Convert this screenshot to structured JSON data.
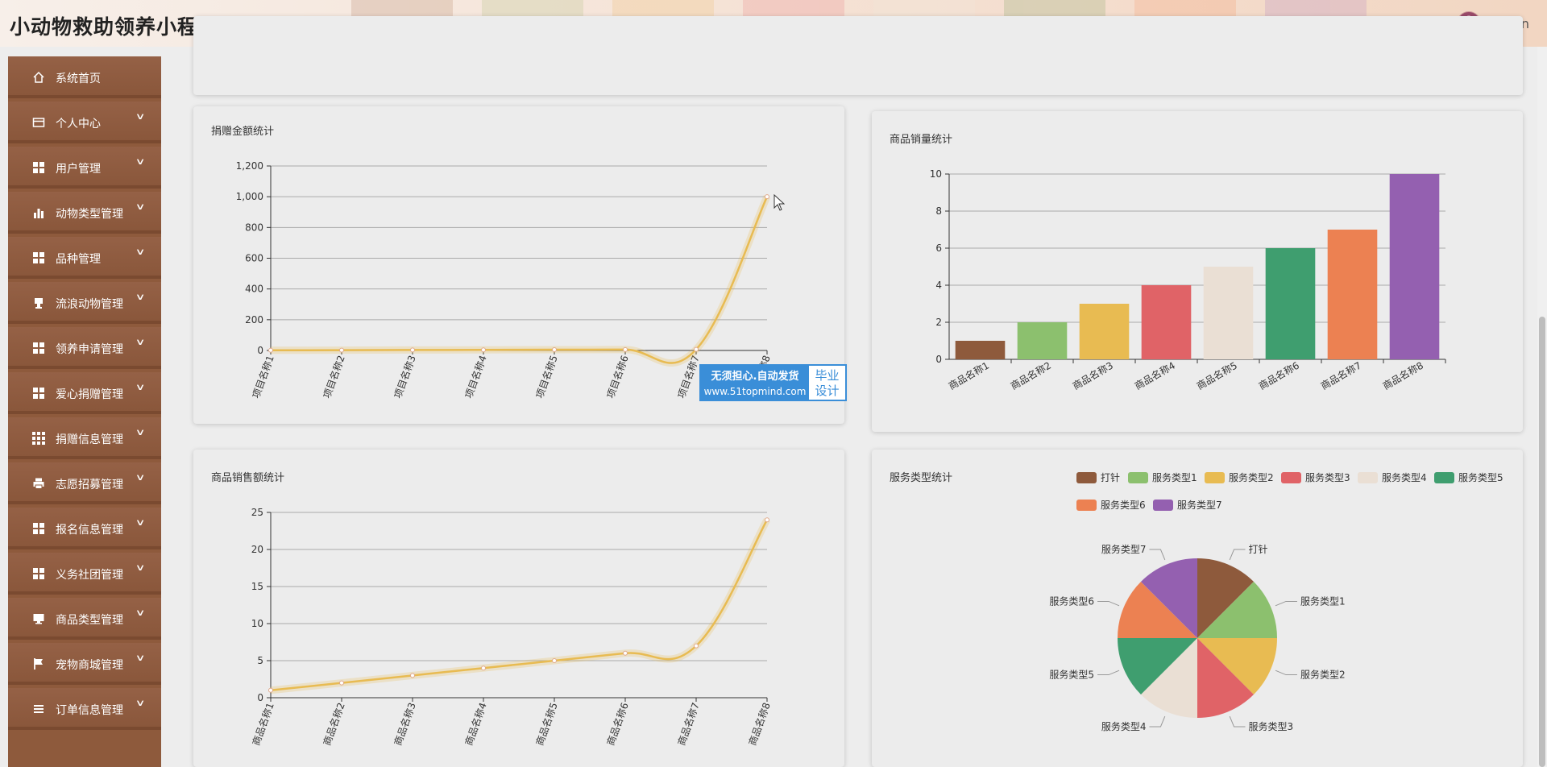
{
  "app": {
    "title": "小动物救助领养小程序",
    "username": "admin"
  },
  "sidebar": {
    "items": [
      {
        "label": "系统首页",
        "icon": "home-icon",
        "has_children": false
      },
      {
        "label": "个人中心",
        "icon": "wallet-icon",
        "has_children": true
      },
      {
        "label": "用户管理",
        "icon": "grid-icon",
        "has_children": true
      },
      {
        "label": "动物类型管理",
        "icon": "bar-chart-icon",
        "has_children": true
      },
      {
        "label": "品种管理",
        "icon": "grid-icon",
        "has_children": true
      },
      {
        "label": "流浪动物管理",
        "icon": "stamp-icon",
        "has_children": true
      },
      {
        "label": "领养申请管理",
        "icon": "grid-icon",
        "has_children": true
      },
      {
        "label": "爱心捐赠管理",
        "icon": "grid-icon",
        "has_children": true
      },
      {
        "label": "捐赠信息管理",
        "icon": "grid9-icon",
        "has_children": true
      },
      {
        "label": "志愿招募管理",
        "icon": "printer-icon",
        "has_children": true
      },
      {
        "label": "报名信息管理",
        "icon": "grid-icon",
        "has_children": true
      },
      {
        "label": "义务社团管理",
        "icon": "grid-icon",
        "has_children": true
      },
      {
        "label": "商品类型管理",
        "icon": "monitor-icon",
        "has_children": true
      },
      {
        "label": "宠物商城管理",
        "icon": "flag-icon",
        "has_children": true
      },
      {
        "label": "订单信息管理",
        "icon": "list-icon",
        "has_children": true
      }
    ]
  },
  "colors": {
    "palette": [
      "#8e5a3c",
      "#8cc06e",
      "#e8bb52",
      "#e06367",
      "#eadfd4",
      "#3f9e6f",
      "#ec8152",
      "#9460b0"
    ],
    "line": "#e8bb52",
    "sidebar": "#8e5a3c"
  },
  "watermark": {
    "line1": "无须担心.自动发货",
    "line2": "www.51topmind.com",
    "side1": "毕业",
    "side2": "设计"
  },
  "chart_data": [
    {
      "type": "line",
      "title": "捐赠金额统计",
      "categories": [
        "项目名称1",
        "项目名称2",
        "项目名称3",
        "项目名称4",
        "项目名称5",
        "项目名称6",
        "项目名称7",
        "项目名称8"
      ],
      "values": [
        1,
        2,
        3,
        4,
        5,
        6,
        7,
        1000
      ],
      "ylim": [
        0,
        1200
      ],
      "yticks": [
        "0",
        "200",
        "400",
        "600",
        "800",
        "1,000",
        "1,200"
      ],
      "grid": true
    },
    {
      "type": "bar",
      "title": "商品销量统计",
      "categories": [
        "商品名称1",
        "商品名称2",
        "商品名称3",
        "商品名称4",
        "商品名称5",
        "商品名称6",
        "商品名称7",
        "商品名称8"
      ],
      "values": [
        1,
        2,
        3,
        4,
        5,
        6,
        7,
        10
      ],
      "ylim": [
        0,
        10
      ],
      "yticks": [
        "0",
        "2",
        "4",
        "6",
        "8",
        "10"
      ],
      "grid": true
    },
    {
      "type": "line",
      "title": "商品销售额统计",
      "categories": [
        "商品名称1",
        "商品名称2",
        "商品名称3",
        "商品名称4",
        "商品名称5",
        "商品名称6",
        "商品名称7",
        "商品名称8"
      ],
      "values": [
        1,
        2,
        3,
        4,
        5,
        6,
        7,
        24
      ],
      "ylim": [
        0,
        25
      ],
      "yticks": [
        "0",
        "5",
        "10",
        "15",
        "20",
        "25"
      ],
      "grid": true
    },
    {
      "type": "pie",
      "title": "服务类型统计",
      "labels": [
        "打针",
        "服务类型1",
        "服务类型2",
        "服务类型3",
        "服务类型4",
        "服务类型5",
        "服务类型6",
        "服务类型7"
      ],
      "values": [
        1,
        1,
        1,
        1,
        1,
        1,
        1,
        1
      ],
      "legend": "top-right"
    }
  ]
}
